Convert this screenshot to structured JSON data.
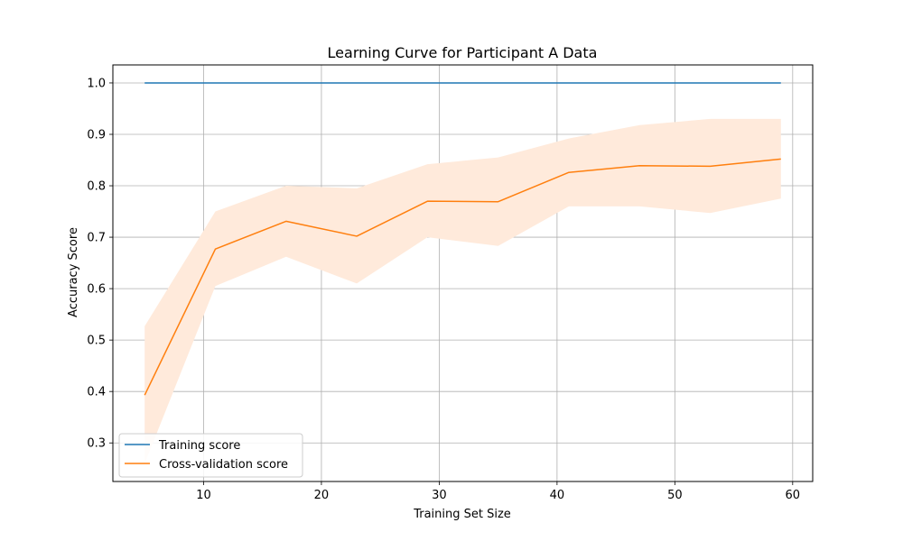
{
  "chart_data": {
    "type": "line",
    "title": "Learning Curve for Participant A Data",
    "xlabel": "Training Set Size",
    "ylabel": "Accuracy Score",
    "xlim": [
      2.3,
      61.7
    ],
    "ylim": [
      0.225,
      1.035
    ],
    "xticks": [
      10,
      20,
      30,
      40,
      50,
      60
    ],
    "yticks": [
      0.3,
      0.4,
      0.5,
      0.6,
      0.7,
      0.8,
      0.9,
      1.0
    ],
    "grid": true,
    "legend_position": "lower-left",
    "x": [
      5,
      11,
      17,
      23,
      29,
      35,
      41,
      47,
      53,
      59
    ],
    "series": [
      {
        "name": "Training score",
        "color": "#1f77b4",
        "values": [
          1.0,
          1.0,
          1.0,
          1.0,
          1.0,
          1.0,
          1.0,
          1.0,
          1.0,
          1.0
        ]
      },
      {
        "name": "Cross-validation score",
        "color": "#ff7f0e",
        "values": [
          0.393,
          0.677,
          0.731,
          0.702,
          0.77,
          0.769,
          0.826,
          0.839,
          0.838,
          0.852
        ],
        "band_lower": [
          0.26,
          0.605,
          0.662,
          0.61,
          0.7,
          0.683,
          0.76,
          0.76,
          0.747,
          0.775
        ],
        "band_upper": [
          0.527,
          0.75,
          0.8,
          0.795,
          0.842,
          0.855,
          0.892,
          0.918,
          0.93,
          0.93
        ],
        "band_color": "#ffeadb"
      }
    ]
  }
}
